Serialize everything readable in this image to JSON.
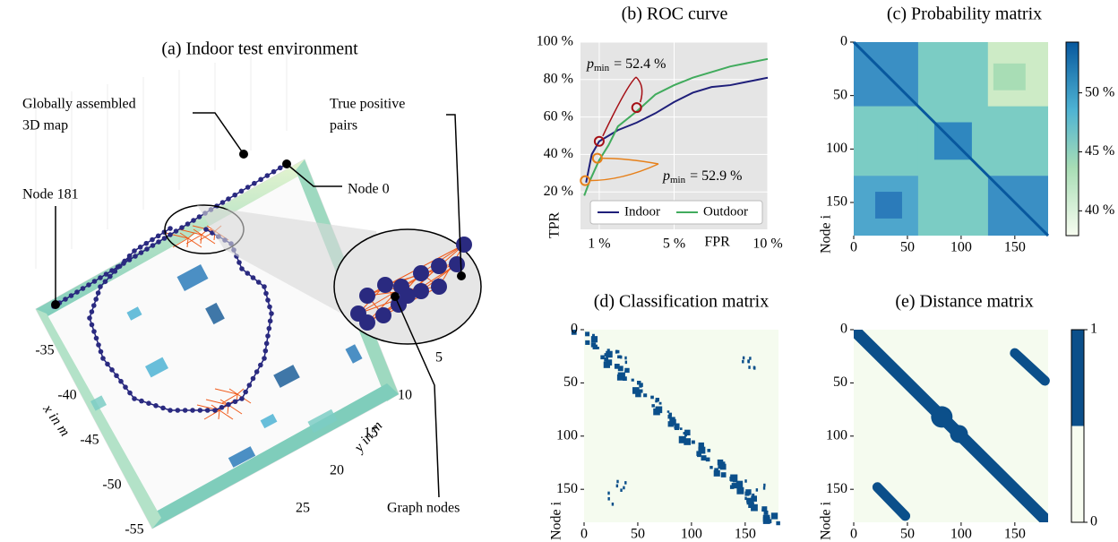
{
  "environment": {
    "title": "(a) Indoor test environment",
    "annotations": {
      "map": [
        "Globally assembled",
        "3D map"
      ],
      "pairs": [
        "True positive",
        "pairs"
      ],
      "node_first": "Node 0",
      "node_last": "Node 181",
      "nodes": "Graph nodes"
    },
    "x_axis_label": "x in m",
    "y_axis_label": "y in m",
    "xticks": [
      -35,
      -40,
      -45,
      -50,
      -55
    ],
    "yticks": [
      5,
      10,
      15,
      20,
      25
    ]
  },
  "chart_data": [
    {
      "type": "line",
      "title": "(b) ROC curve",
      "xlabel": "FPR",
      "ylabel": "TPR",
      "xlim": [
        0,
        10
      ],
      "ylim": [
        0,
        100
      ],
      "xticks": [
        {
          "value": 1,
          "label": "1 %"
        },
        {
          "value": 5,
          "label": "5 %"
        },
        {
          "value": 10,
          "label": "10 %"
        }
      ],
      "yticks": [
        {
          "value": 20,
          "label": "20 %"
        },
        {
          "value": 40,
          "label": "40 %"
        },
        {
          "value": 60,
          "label": "60 %"
        },
        {
          "value": 80,
          "label": "80 %"
        },
        {
          "value": 100,
          "label": "100 %"
        }
      ],
      "grid": true,
      "legend": "lower right",
      "series": [
        {
          "name": "Indoor",
          "color": "#1f1f7a",
          "x": [
            0.3,
            0.6,
            1,
            1.5,
            2,
            3,
            4,
            5,
            6,
            7,
            8,
            9,
            10
          ],
          "values": [
            25,
            40,
            47,
            50,
            53,
            57,
            62,
            68,
            73,
            76,
            77,
            79,
            81
          ]
        },
        {
          "name": "Outdoor",
          "color": "#41ab5d",
          "x": [
            0.2,
            0.5,
            1,
            1.5,
            2,
            3,
            4,
            5,
            6,
            7,
            8,
            9,
            10
          ],
          "values": [
            18,
            26,
            37,
            45,
            55,
            63,
            72,
            77,
            81,
            84,
            87,
            89,
            91
          ]
        }
      ],
      "markers": [
        {
          "x": 1,
          "y": 47,
          "color": "#a50f15"
        },
        {
          "x": 3,
          "y": 65,
          "color": "#a50f15"
        },
        {
          "x": 0.9,
          "y": 38,
          "color": "#e6801a"
        },
        {
          "x": 0.25,
          "y": 26,
          "color": "#e6801a"
        }
      ],
      "annotations": [
        {
          "symbol": "p",
          "subscript": "min",
          "text": "= 52.4 %",
          "color": "#a50f15"
        },
        {
          "symbol": "p",
          "subscript": "min",
          "text": "= 52.9 %",
          "color": "#e6801a"
        }
      ]
    },
    {
      "type": "heatmap",
      "title": "(c) Probability matrix",
      "ylabel": "Node i",
      "xlim": [
        0,
        181
      ],
      "ylim": [
        0,
        181
      ],
      "xticks": [
        0,
        50,
        100,
        150
      ],
      "yticks": [
        0,
        50,
        100,
        150
      ],
      "colorbar": {
        "lim": [
          37.9,
          54.3
        ],
        "colors": [
          "#f7fcf0",
          "#08589e"
        ],
        "ticks": [
          {
            "value": 40,
            "label": "40 %"
          },
          {
            "value": 45,
            "label": "45 %"
          },
          {
            "value": 50,
            "label": "50 %"
          }
        ]
      }
    },
    {
      "type": "heatmap",
      "title": "(d) Classification matrix",
      "ylabel": "Node i",
      "xlim": [
        0,
        181
      ],
      "ylim": [
        0,
        181
      ],
      "xticks": [
        0,
        50,
        100,
        150
      ],
      "yticks": [
        0,
        50,
        100,
        150
      ]
    },
    {
      "type": "heatmap",
      "title": "(e) Distance matrix",
      "ylabel": "Node i",
      "xlim": [
        0,
        181
      ],
      "ylim": [
        0,
        181
      ],
      "xticks": [
        0,
        50,
        100,
        150
      ],
      "yticks": [
        0,
        50,
        100,
        150
      ],
      "colorbar": {
        "lim": [
          0,
          1
        ],
        "colors": [
          "#f7fcf0",
          "#0b4f8a"
        ],
        "ticks": [
          0,
          1
        ]
      }
    }
  ]
}
